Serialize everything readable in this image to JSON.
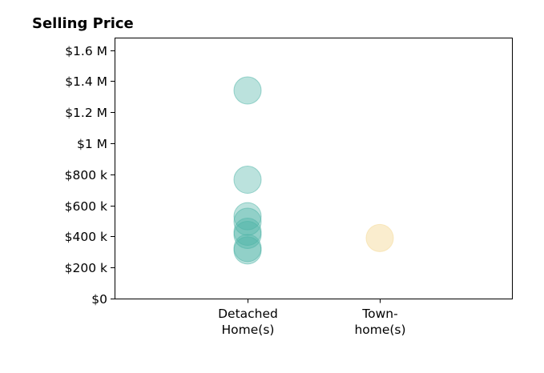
{
  "chart_data": {
    "type": "scatter",
    "title": "Selling Price",
    "xlabel": "",
    "ylabel": "",
    "categories": [
      [
        "Detached",
        "Home(s)"
      ],
      [
        "Town-",
        "home(s)"
      ]
    ],
    "y_ticks": [
      {
        "value": 0,
        "label": "$0"
      },
      {
        "value": 200000,
        "label": "$200 k"
      },
      {
        "value": 400000,
        "label": "$400 k"
      },
      {
        "value": 600000,
        "label": "$600 k"
      },
      {
        "value": 800000,
        "label": "$800 k"
      },
      {
        "value": 1000000,
        "label": "$1 M"
      },
      {
        "value": 1200000,
        "label": "$1.2 M"
      },
      {
        "value": 1400000,
        "label": "$1.4 M"
      },
      {
        "value": 1600000,
        "label": "$1.6 M"
      }
    ],
    "ylim": [
      0,
      1680000
    ],
    "grid": false,
    "series": [
      {
        "category_index": 0,
        "color": "#4db3a6",
        "opacity": 0.38,
        "values": [
          1340000,
          765000,
          530000,
          495000,
          430000,
          410000,
          325000,
          310000
        ]
      },
      {
        "category_index": 1,
        "color": "#f6dfa6",
        "opacity": 0.55,
        "values": [
          390000
        ]
      }
    ]
  }
}
